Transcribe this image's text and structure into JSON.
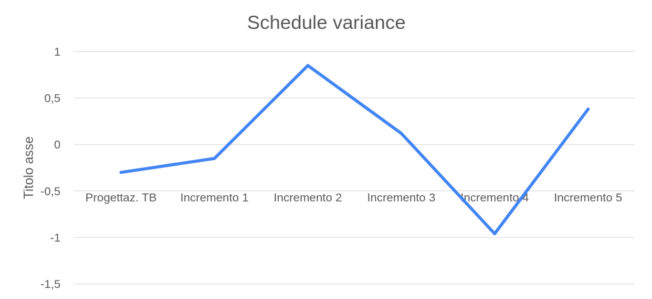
{
  "chart_data": {
    "type": "line",
    "title": "Schedule variance",
    "xlabel": "",
    "ylabel": "Titolo asse",
    "ylim": [
      -1.5,
      1
    ],
    "yticks": [
      1,
      0.5,
      0,
      -0.5,
      -1,
      -1.5
    ],
    "ytick_labels": [
      "1",
      "0,5",
      "0",
      "-0,5",
      "-1",
      "-1,5"
    ],
    "grid": true,
    "legend": "none",
    "categories": [
      "Progettaz. TB",
      "Incremento 1",
      "Incremento 2",
      "Incremento 3",
      "Incremento 4",
      "Incremento 5"
    ],
    "series": [
      {
        "color": "#4285f4",
        "values": [
          -0.3,
          -0.15,
          0.85,
          0.12,
          -0.96,
          0.38
        ]
      }
    ]
  }
}
